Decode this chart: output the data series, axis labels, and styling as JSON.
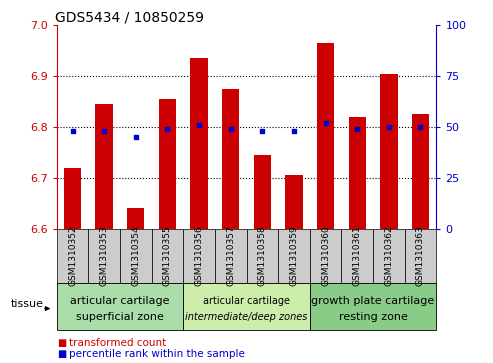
{
  "title": "GDS5434 / 10850259",
  "samples": [
    "GSM1310352",
    "GSM1310353",
    "GSM1310354",
    "GSM1310355",
    "GSM1310356",
    "GSM1310357",
    "GSM1310358",
    "GSM1310359",
    "GSM1310360",
    "GSM1310361",
    "GSM1310362",
    "GSM1310363"
  ],
  "red_values": [
    6.72,
    6.845,
    6.64,
    6.855,
    6.935,
    6.875,
    6.745,
    6.705,
    6.965,
    6.82,
    6.905,
    6.825
  ],
  "blue_values": [
    48,
    48,
    45,
    49,
    51,
    49,
    48,
    48,
    52,
    49,
    50,
    50
  ],
  "ylim_left": [
    6.6,
    7.0
  ],
  "ylim_right": [
    0,
    100
  ],
  "yticks_left": [
    6.6,
    6.7,
    6.8,
    6.9,
    7.0
  ],
  "yticks_right": [
    0,
    25,
    50,
    75,
    100
  ],
  "bar_color": "#cc0000",
  "dot_color": "#0000cc",
  "bar_width": 0.55,
  "bg_color": "#ffffff",
  "tissue_group_colors": [
    "#aaddaa",
    "#cceeaa",
    "#88cc88"
  ],
  "tissue_group_texts_line1": [
    "articular cartilage",
    "articular cartilage",
    "growth plate cartilage"
  ],
  "tissue_group_texts_line2": [
    "superficial zone",
    "intermediate/deep zones",
    "resting zone"
  ],
  "tissue_group_ranges": [
    [
      0,
      3
    ],
    [
      4,
      7
    ],
    [
      8,
      11
    ]
  ],
  "tissue_group_line2_italic": [
    false,
    true,
    false
  ],
  "tissue_group_fontsize": [
    8,
    7,
    8
  ],
  "legend_red_label": "transformed count",
  "legend_blue_label": "percentile rank within the sample",
  "tissue_label": "tissue",
  "grid_color": "#000000",
  "tick_color_left": "#cc0000",
  "tick_color_right": "#0000cc",
  "title_fontsize": 10,
  "tick_label_fontsize": 6.5,
  "gray_box_color": "#cccccc",
  "white_bg": "#ffffff"
}
